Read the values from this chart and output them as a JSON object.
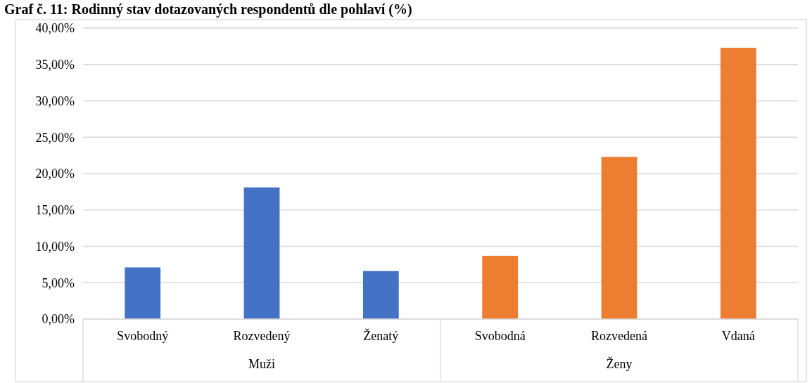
{
  "chart_data": {
    "type": "bar",
    "title": "Graf č. 11: Rodinný stav dotazovaných respondentů dle pohlaví (%)",
    "categories": [
      "Svobodný",
      "Rozvedený",
      "Ženatý",
      "Svobodná",
      "Rozvedená",
      "Vdaná"
    ],
    "values": [
      7.1,
      18.1,
      6.6,
      8.7,
      22.3,
      37.3
    ],
    "colors": [
      "#4472c4",
      "#4472c4",
      "#4472c4",
      "#ed7d31",
      "#ed7d31",
      "#ed7d31"
    ],
    "annotations": [
      "Muži",
      "Ženy"
    ],
    "ylim": [
      0,
      40
    ],
    "yticks": [
      {
        "value": 0,
        "label": "0,00%"
      },
      {
        "value": 5,
        "label": "5,00%"
      },
      {
        "value": 10,
        "label": "10,00%"
      },
      {
        "value": 15,
        "label": "15,00%"
      },
      {
        "value": 20,
        "label": "20,00%"
      },
      {
        "value": 25,
        "label": "25,00%"
      },
      {
        "value": 30,
        "label": "30,00%"
      },
      {
        "value": 35,
        "label": "35,00%"
      },
      {
        "value": 40,
        "label": "40,00%"
      }
    ],
    "grid": true
  }
}
